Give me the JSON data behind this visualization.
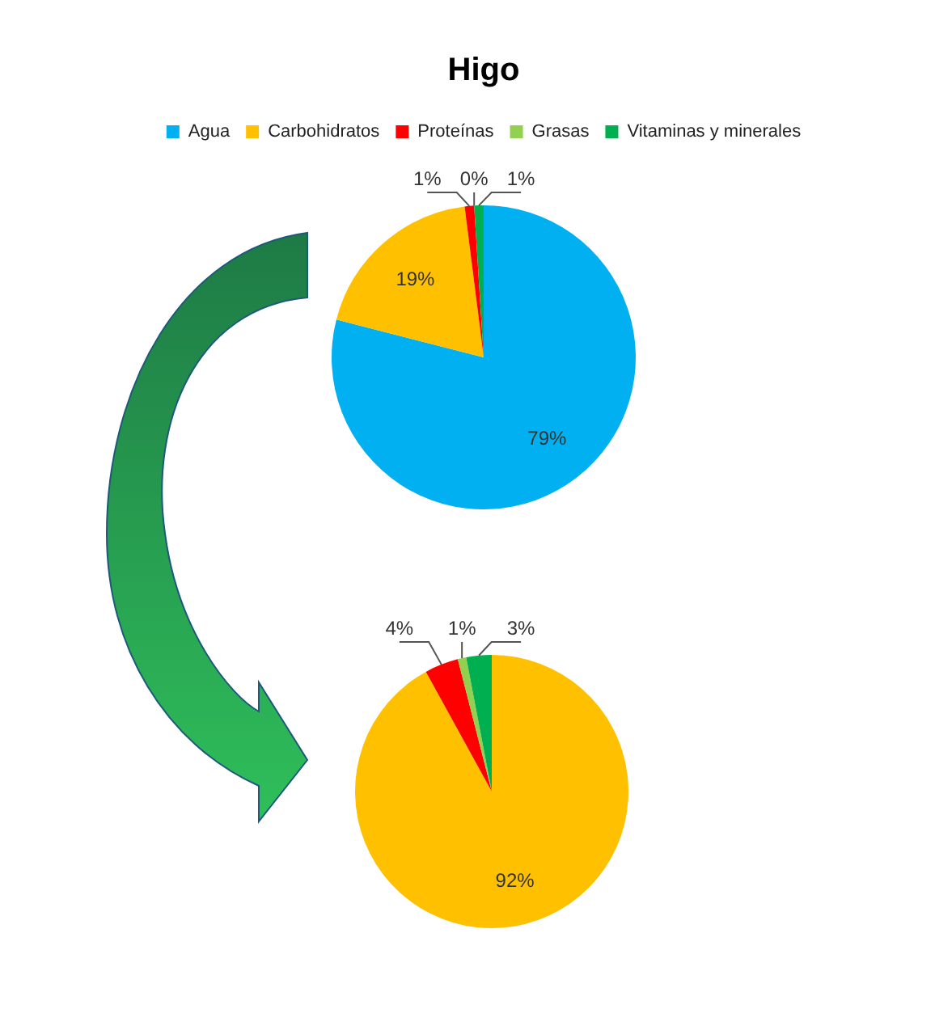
{
  "chart_data": [
    {
      "type": "pie",
      "title": "Higo",
      "categories": [
        "Agua",
        "Carbohidratos",
        "Proteínas",
        "Grasas",
        "Vitaminas y minerales"
      ],
      "values": [
        79,
        19,
        1,
        0,
        1
      ],
      "colors": [
        "#00b0f0",
        "#ffc000",
        "#ff0000",
        "#92d050",
        "#00b050"
      ],
      "value_labels": [
        "79%",
        "19%",
        "1%",
        "0%",
        "1%"
      ],
      "legend": "top"
    },
    {
      "type": "pie",
      "categories": [
        null,
        null,
        null,
        null
      ],
      "values": [
        92,
        4,
        1,
        3
      ],
      "colors": [
        "#ffc000",
        "#ff0000",
        "#92d050",
        "#00b050"
      ],
      "value_labels": [
        "92%",
        "4%",
        "1%",
        "3%"
      ]
    }
  ]
}
